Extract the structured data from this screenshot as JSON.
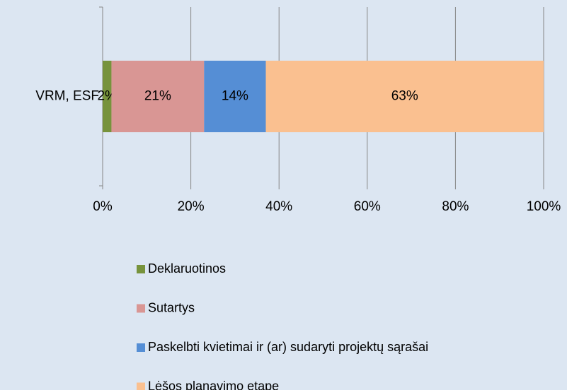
{
  "chart_data": {
    "type": "bar",
    "orientation": "horizontal",
    "stacked": true,
    "categories": [
      "VRM, ESF"
    ],
    "series": [
      {
        "name": "Deklaruotinos",
        "color": "#77933c",
        "values": [
          2
        ],
        "value_labels": [
          "2%"
        ]
      },
      {
        "name": "Sutartys",
        "color": "#d99694",
        "values": [
          21
        ],
        "value_labels": [
          "21%"
        ]
      },
      {
        "name": "Paskelbti kvietimai ir (ar) sudaryti projektų sąrašai",
        "color": "#558ed5",
        "values": [
          14
        ],
        "value_labels": [
          "14%"
        ]
      },
      {
        "name": "Lėšos planavimo etape",
        "color": "#fac090",
        "values": [
          63
        ],
        "value_labels": [
          "63%"
        ]
      }
    ],
    "xlim": [
      0,
      100
    ],
    "xticks": [
      {
        "value": 0,
        "label": "0%"
      },
      {
        "value": 20,
        "label": "20%"
      },
      {
        "value": 40,
        "label": "40%"
      },
      {
        "value": 60,
        "label": "60%"
      },
      {
        "value": 80,
        "label": "80%"
      },
      {
        "value": 100,
        "label": "100%"
      }
    ],
    "grid": true,
    "legend": "bottom"
  }
}
